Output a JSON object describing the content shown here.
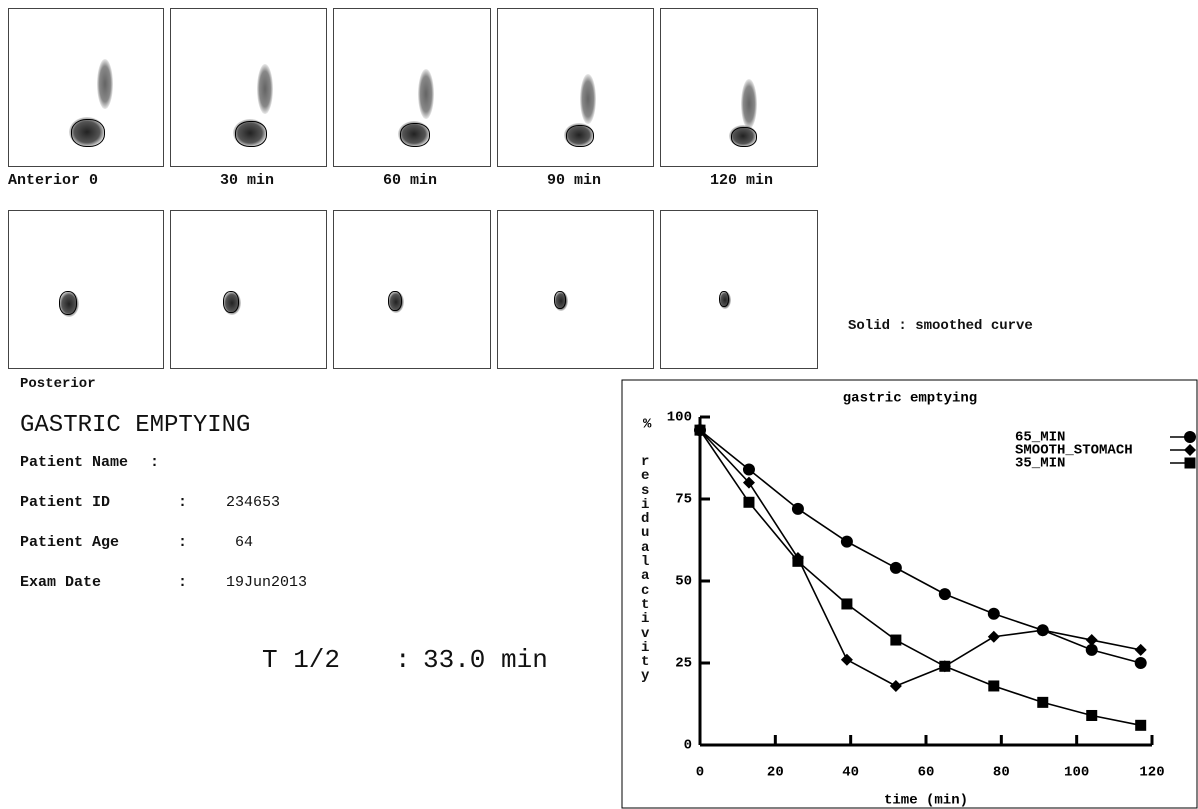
{
  "header": {
    "anterior_labels": [
      "Anterior 0",
      "30 min",
      "60 min",
      "90 min",
      "120 min"
    ],
    "posterior_label": "Posterior",
    "note": "Solid : smoothed curve",
    "title": "GASTRIC EMPTYING"
  },
  "patient": [
    {
      "label": "Patient Name",
      "sep": ":"
    },
    {
      "label": "Patient ID",
      "sep": ":",
      "value": "234653"
    },
    {
      "label": "Patient Age",
      "sep": ":",
      "value": "64"
    },
    {
      "label": "Exam Date",
      "sep": ":",
      "value": "19Jun2013"
    }
  ],
  "result": {
    "label": "T 1/2",
    "sep": ":",
    "value": "33.0 min"
  },
  "chart_data": {
    "type": "line",
    "title": "gastric emptying",
    "y_label_symbol": "%",
    "y_label": "residual activity",
    "x_label": "time (min)",
    "x": [
      0,
      13,
      26,
      39,
      52,
      65,
      78,
      91,
      104,
      117
    ],
    "series": [
      {
        "name": "65_MIN",
        "color": "#000000",
        "marker": "circle",
        "values": [
          96,
          84,
          72,
          62,
          54,
          46,
          40,
          35,
          29,
          25
        ]
      },
      {
        "name": "SMOOTH_STOMACH",
        "color": "#000000",
        "marker": "diamond",
        "values": [
          96,
          80,
          57,
          26,
          18,
          24,
          33,
          35,
          32,
          29
        ]
      },
      {
        "name": "35_MIN",
        "color": "#000000",
        "marker": "square",
        "values": [
          96,
          74,
          56,
          43,
          32,
          24,
          18,
          13,
          9,
          6
        ]
      }
    ],
    "xlim": [
      0,
      120
    ],
    "xticks": [
      0,
      20,
      40,
      60,
      80,
      100,
      120
    ],
    "ylim": [
      0,
      100
    ],
    "yticks": [
      0,
      25,
      50,
      75,
      100
    ]
  }
}
